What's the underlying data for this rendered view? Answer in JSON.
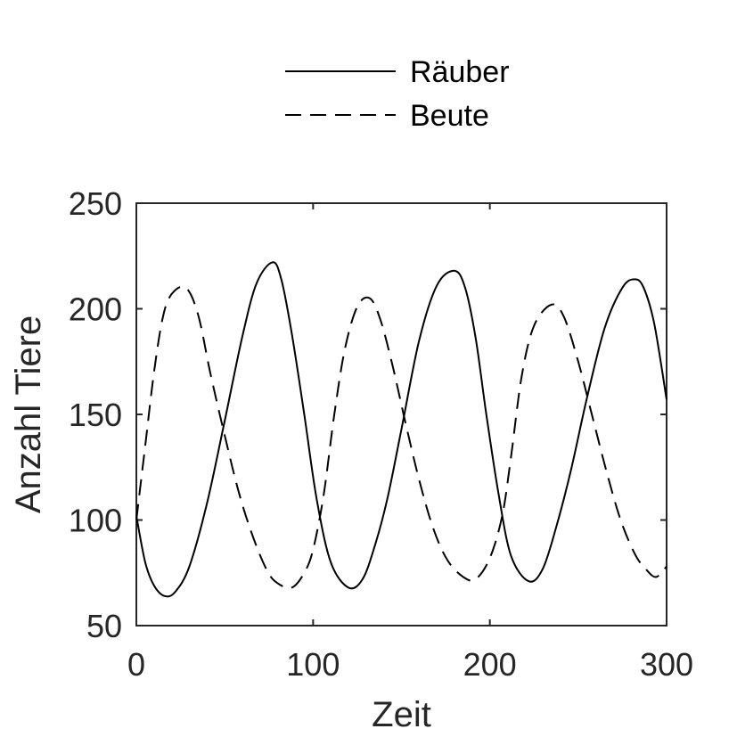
{
  "chart_data": {
    "type": "line",
    "xlabel": "Zeit",
    "ylabel": "Anzahl Tiere",
    "xlim": [
      0,
      300
    ],
    "ylim": [
      50,
      250
    ],
    "xticks": [
      0,
      100,
      200,
      300
    ],
    "yticks": [
      50,
      100,
      150,
      200,
      250
    ],
    "xtick_labels": [
      "0",
      "100",
      "200",
      "300"
    ],
    "ytick_labels": [
      "50",
      "100",
      "150",
      "200",
      "250"
    ],
    "grid": false,
    "legend_placement": "top-center-outside",
    "series": [
      {
        "name": "Räuber",
        "style": "solid",
        "color": "#000000",
        "x": [
          0,
          5,
          10,
          16,
          22,
          30,
          40,
          50,
          60,
          68,
          77,
          82,
          88,
          95,
          102,
          110,
          120,
          128,
          135,
          142,
          150,
          160,
          170,
          180,
          186,
          192,
          198,
          205,
          212,
          222,
          230,
          238,
          246,
          255,
          265,
          275,
          282,
          287,
          293,
          300
        ],
        "y": [
          102,
          80,
          69,
          64,
          66,
          78,
          108,
          147,
          187,
          212,
          222,
          214,
          188,
          150,
          110,
          80,
          68,
          72,
          88,
          110,
          143,
          185,
          211,
          218,
          210,
          186,
          150,
          112,
          83,
          71,
          77,
          98,
          124,
          158,
          191,
          210,
          214,
          210,
          193,
          157
        ]
      },
      {
        "name": "Beute",
        "style": "dashed",
        "color": "#000000",
        "x": [
          0,
          5,
          10,
          15,
          20,
          28,
          35,
          42,
          50,
          58,
          66,
          74,
          80,
          88,
          95,
          100,
          106,
          112,
          118,
          125,
          132,
          138,
          145,
          152,
          160,
          168,
          176,
          185,
          192,
          200,
          207,
          212,
          218,
          225,
          235,
          242,
          250,
          258,
          266,
          274,
          282,
          288,
          294,
          300
        ],
        "y": [
          100,
          135,
          170,
          196,
          207,
          210,
          197,
          169,
          140,
          113,
          92,
          76,
          70,
          68,
          75,
          86,
          112,
          150,
          181,
          201,
          205,
          195,
          173,
          147,
          119,
          96,
          81,
          73,
          72,
          82,
          102,
          130,
          168,
          192,
          202,
          196,
          175,
          149,
          123,
          100,
          84,
          77,
          73,
          78
        ]
      }
    ]
  }
}
